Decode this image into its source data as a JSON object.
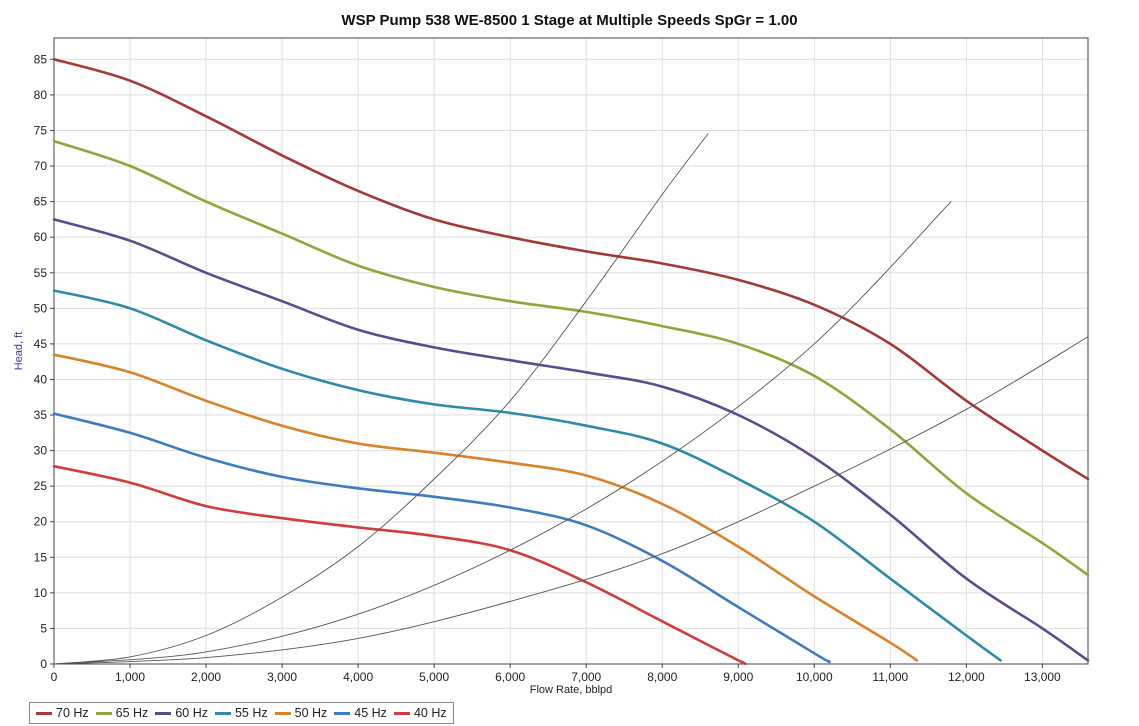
{
  "chart_data": {
    "type": "line",
    "title": "WSP Pump 538 WE-8500 1 Stage at Multiple Speeds SpGr = 1.00",
    "xlabel": "Flow Rate, bblpd",
    "ylabel": "Head, ft",
    "xlim": [
      0,
      13600
    ],
    "ylim": [
      0,
      88
    ],
    "xticks": [
      0,
      1000,
      2000,
      3000,
      4000,
      5000,
      6000,
      7000,
      8000,
      9000,
      10000,
      11000,
      12000,
      13000
    ],
    "xtick_labels": [
      "0",
      "1,000",
      "2,000",
      "3,000",
      "4,000",
      "5,000",
      "6,000",
      "7,000",
      "8,000",
      "9,000",
      "10,000",
      "11,000",
      "12,000",
      "13,000"
    ],
    "yticks": [
      0,
      5,
      10,
      15,
      20,
      25,
      30,
      35,
      40,
      45,
      50,
      55,
      60,
      65,
      70,
      75,
      80,
      85
    ],
    "grid": true,
    "legend_position": "bottom-left",
    "series": [
      {
        "name": "70 Hz",
        "color": "#a33a3a",
        "x": [
          0,
          1000,
          2000,
          3000,
          4000,
          5000,
          6000,
          7000,
          8000,
          9000,
          10000,
          11000,
          12000,
          13000,
          13600
        ],
        "y": [
          85,
          82,
          77,
          71.5,
          66.5,
          62.5,
          60,
          58,
          56.3,
          54,
          50.5,
          45,
          37,
          30,
          26
        ]
      },
      {
        "name": "65 Hz",
        "color": "#8fa63d",
        "x": [
          0,
          1000,
          2000,
          3000,
          4000,
          5000,
          6000,
          7000,
          8000,
          9000,
          10000,
          11000,
          12000,
          13000,
          13600
        ],
        "y": [
          73.5,
          70,
          65,
          60.5,
          56,
          53,
          51,
          49.5,
          47.5,
          45,
          40.5,
          33,
          24,
          17,
          12.5
        ]
      },
      {
        "name": "60 Hz",
        "color": "#5e4a8e",
        "x": [
          0,
          1000,
          2000,
          3000,
          4000,
          5000,
          6000,
          7000,
          8000,
          9000,
          10000,
          11000,
          12000,
          13000,
          13600
        ],
        "y": [
          62.5,
          59.5,
          55,
          51,
          47,
          44.5,
          42.7,
          41,
          39,
          35,
          29,
          21,
          12,
          5,
          0.5
        ]
      },
      {
        "name": "55 Hz",
        "color": "#2e8aa8",
        "x": [
          0,
          1000,
          2000,
          3000,
          4000,
          5000,
          6000,
          7000,
          8000,
          9000,
          10000,
          11000,
          12000,
          12450
        ],
        "y": [
          52.5,
          50,
          45.5,
          41.5,
          38.5,
          36.5,
          35.3,
          33.5,
          31,
          26,
          20,
          12,
          4,
          0.5
        ]
      },
      {
        "name": "50 Hz",
        "color": "#d9822b",
        "x": [
          0,
          1000,
          2000,
          3000,
          4000,
          5000,
          6000,
          7000,
          8000,
          9000,
          10000,
          11000,
          11350
        ],
        "y": [
          43.5,
          41,
          37,
          33.5,
          31,
          29.7,
          28.3,
          26.5,
          22.5,
          16.5,
          9.5,
          3,
          0.5
        ]
      },
      {
        "name": "45 Hz",
        "color": "#3d7cbf",
        "x": [
          0,
          1000,
          2000,
          3000,
          4000,
          5000,
          6000,
          7000,
          8000,
          9000,
          10000,
          10200
        ],
        "y": [
          35.2,
          32.5,
          29,
          26.3,
          24.7,
          23.5,
          22,
          19.5,
          14.5,
          8,
          1.5,
          0.3
        ]
      },
      {
        "name": "40 Hz",
        "color": "#cf3d3d",
        "x": [
          0,
          1000,
          2000,
          3000,
          4000,
          5000,
          6000,
          7000,
          8000,
          9000,
          9050
        ],
        "y": [
          27.8,
          25.5,
          22.2,
          20.5,
          19.2,
          18,
          16,
          11.5,
          6,
          0.5,
          0.3
        ]
      },
      {
        "color": "#555555",
        "x": [
          0,
          1000,
          2000,
          3000,
          4000,
          5000,
          6000,
          7000,
          8000,
          8600
        ],
        "y": [
          0,
          1,
          4,
          9.4,
          16.5,
          26,
          37,
          51,
          66,
          74.5
        ]
      },
      {
        "color": "#555555",
        "x": [
          0,
          2000,
          4000,
          6000,
          8000,
          10000,
          11800
        ],
        "y": [
          0,
          1.7,
          7,
          16,
          28.5,
          45,
          65
        ]
      },
      {
        "color": "#555555",
        "x": [
          0,
          2000,
          4000,
          6000,
          8000,
          10000,
          12000,
          13600
        ],
        "y": [
          0,
          0.9,
          3.6,
          8.8,
          15.5,
          25,
          35.8,
          46
        ]
      }
    ]
  }
}
